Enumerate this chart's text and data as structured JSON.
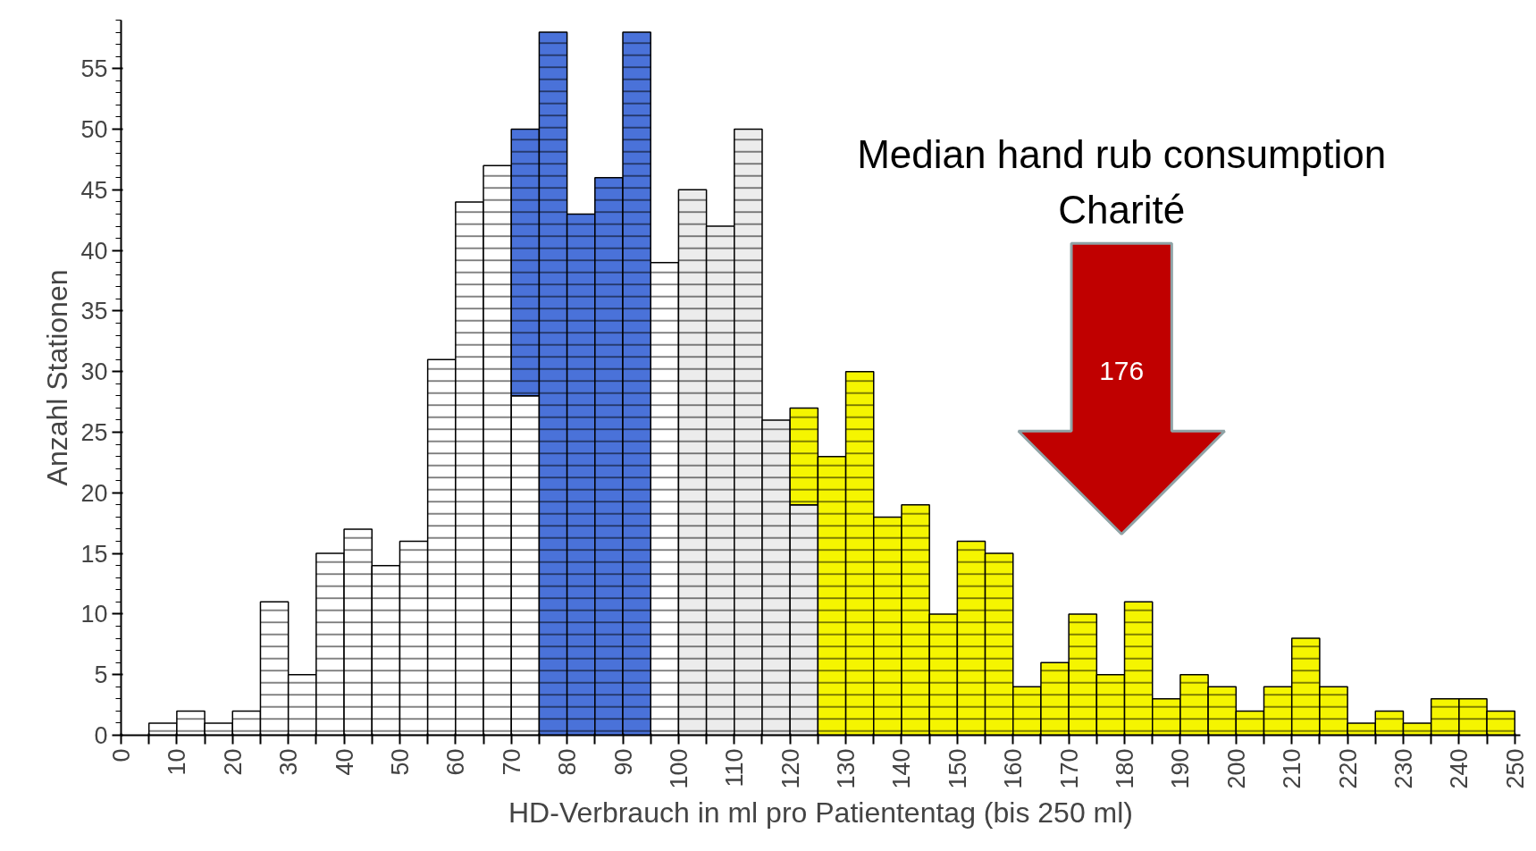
{
  "chart_data": {
    "type": "bar",
    "xlabel": "HD-Verbrauch in ml pro Patiententag (bis 250 ml)",
    "ylabel": "Anzahl Stationen",
    "x": [
      7.5,
      12.5,
      17.5,
      22.5,
      27.5,
      32.5,
      37.5,
      42.5,
      47.5,
      52.5,
      57.5,
      62.5,
      67.5,
      72.5,
      77.5,
      82.5,
      87.5,
      92.5,
      97.5,
      102.5,
      107.5,
      112.5,
      117.5,
      122.5,
      127.5,
      132.5,
      137.5,
      142.5,
      147.5,
      152.5,
      157.5,
      162.5,
      167.5,
      172.5,
      177.5,
      182.5,
      187.5,
      192.5,
      197.5,
      202.5,
      207.5,
      212.5,
      217.5,
      222.5,
      227.5,
      232.5,
      237.5,
      242.5,
      247.5
    ],
    "stacked": true,
    "series": [
      {
        "colors": [
          "#ffffff",
          "#ffffff",
          "#ffffff",
          "#ffffff",
          "#ffffff",
          "#ffffff",
          "#ffffff",
          "#ffffff",
          "#ffffff",
          "#ffffff",
          "#ffffff",
          "#ffffff",
          "#ffffff",
          "#ffffff",
          "#ffffff",
          "#ffffff",
          "#ffffff",
          "#ffffff",
          "#ffffff",
          "#ececec",
          "#ececec",
          "#ececec",
          "#ececec",
          "#ececec",
          "#ffffff",
          "#ffffff",
          "#ffffff",
          "#ffffff",
          "#ffffff",
          "#ffffff",
          "#ffffff",
          "#ffffff",
          "#ffffff",
          "#ffffff",
          "#ffffff",
          "#ffffff",
          "#ffffff",
          "#ffffff",
          "#ffffff",
          "#ffffff",
          "#ffffff",
          "#ffffff",
          "#ffffff",
          "#ffffff",
          "#ffffff",
          "#ffffff",
          "#ffffff",
          "#ffffff",
          "#ffffff"
        ],
        "values": [
          1,
          2,
          1,
          2,
          11,
          5,
          15,
          17,
          14,
          16,
          31,
          44,
          47,
          28,
          null,
          null,
          null,
          null,
          39,
          45,
          42,
          50,
          26,
          19,
          null,
          null,
          null,
          null,
          null,
          null,
          null,
          null,
          null,
          null,
          null,
          null,
          null,
          null,
          null,
          null,
          null,
          null,
          null,
          null,
          null,
          null,
          null,
          null,
          null
        ]
      },
      {
        "color": "#4a72d9",
        "values": [
          null,
          null,
          null,
          null,
          null,
          null,
          null,
          null,
          null,
          null,
          null,
          null,
          null,
          22,
          58,
          43,
          46,
          58,
          null,
          null,
          null,
          null,
          null,
          null,
          null,
          null,
          null,
          null,
          null,
          null,
          null,
          null,
          null,
          null,
          null,
          null,
          null,
          null,
          null,
          null,
          null,
          null,
          null,
          null,
          null,
          null,
          null,
          null,
          null
        ]
      },
      {
        "color": "#f5f500",
        "values": [
          null,
          null,
          null,
          null,
          null,
          null,
          null,
          null,
          null,
          null,
          null,
          null,
          null,
          null,
          null,
          null,
          null,
          null,
          null,
          null,
          null,
          null,
          null,
          8,
          23,
          30,
          18,
          19,
          10,
          16,
          15,
          4,
          6,
          10,
          5,
          11,
          3,
          5,
          4,
          2,
          4,
          8,
          4,
          1,
          2,
          1,
          3,
          3,
          2
        ]
      }
    ],
    "xlim": [
      0,
      251
    ],
    "ylim": [
      0,
      59
    ],
    "xticks": [
      0,
      {
        "value": 5,
        "label": null
      },
      10,
      {
        "value": 15,
        "label": null
      },
      20,
      {
        "value": 25,
        "label": null
      },
      30,
      {
        "value": 35,
        "label": null
      },
      40,
      {
        "value": 45,
        "label": null
      },
      50,
      {
        "value": 55,
        "label": null
      },
      60,
      {
        "value": 65,
        "label": null
      },
      70,
      {
        "value": 75,
        "label": null
      },
      80,
      {
        "value": 85,
        "label": null
      },
      90,
      {
        "value": 95,
        "label": null
      },
      100,
      {
        "value": 105,
        "label": null
      },
      110,
      {
        "value": 115,
        "label": null
      },
      120,
      {
        "value": 125,
        "label": null
      },
      130,
      {
        "value": 135,
        "label": null
      },
      140,
      {
        "value": 145,
        "label": null
      },
      150,
      {
        "value": 155,
        "label": null
      },
      160,
      {
        "value": 165,
        "label": null
      },
      170,
      {
        "value": 175,
        "label": null
      },
      180,
      {
        "value": 185,
        "label": null
      },
      190,
      {
        "value": 195,
        "label": null
      },
      200,
      {
        "value": 205,
        "label": null
      },
      210,
      {
        "value": 215,
        "label": null
      },
      220,
      {
        "value": 225,
        "label": null
      },
      230,
      {
        "value": 235,
        "label": null
      },
      240,
      {
        "value": 245,
        "label": null
      },
      250
    ],
    "yticks": [
      0,
      5,
      10,
      15,
      20,
      25,
      30,
      35,
      40,
      45,
      50,
      55
    ],
    "grid": false,
    "annotations": [
      "Median hand rub consumption\nCharité",
      "176"
    ]
  }
}
